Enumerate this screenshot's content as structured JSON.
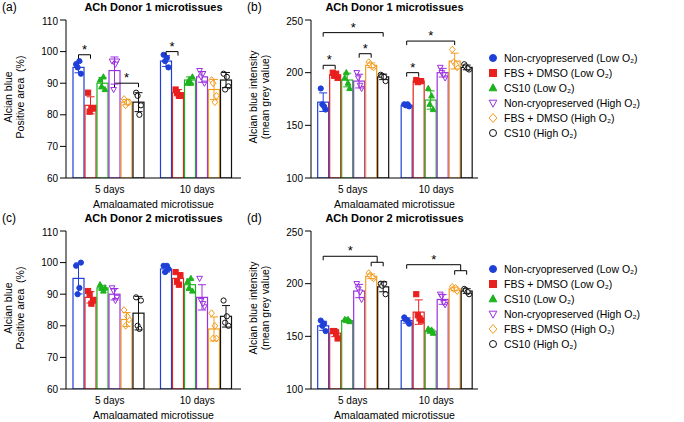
{
  "chart_data": [
    {
      "type": "bar",
      "panel_label": "(a)",
      "title": "ACh Donor 1 microtissues",
      "xlabel": "Amalgamated microtissue",
      "ylabel": [
        "Alcian blue",
        "Positive area  (%)"
      ],
      "categories": [
        "5 days",
        "10 days"
      ],
      "ylim": [
        60,
        110
      ],
      "yticks": [
        60,
        70,
        80,
        90,
        100,
        110
      ],
      "legend": "none",
      "series": [
        {
          "name": "Non-cryopreserved (Low O₂)",
          "color": "#1f40d8",
          "marker": "circle",
          "values": [
            95,
            97
          ],
          "errors": [
            1.7,
            1.7
          ],
          "points": [
            [
              96,
              93,
              95,
              97
            ],
            [
              99,
              95,
              97,
              98
            ]
          ]
        },
        {
          "name": "FBS + DMSO (Low O₂)",
          "color": "#e8201e",
          "marker": "square",
          "values": [
            83,
            87
          ],
          "errors": [
            2.7,
            1.0
          ],
          "points": [
            [
              87,
              82,
              81,
              82
            ],
            [
              88,
              86,
              87,
              86
            ]
          ]
        },
        {
          "name": "CS10 (Low O₂)",
          "color": "#1db31d",
          "marker": "triangle",
          "values": [
            90,
            91
          ],
          "errors": [
            1.8,
            1.0
          ],
          "points": [
            [
              91,
              88,
              89,
              92
            ],
            [
              90,
              92,
              91,
              90
            ]
          ]
        },
        {
          "name": "Non-cryopreserved (High O₂)",
          "color": "#9b30e0",
          "marker": "triangle_down_open",
          "values": [
            94,
            92
          ],
          "errors": [
            4.3,
            1.7
          ],
          "points": [
            [
              97,
              97,
              88,
              96
            ],
            [
              94,
              90,
              92,
              93
            ]
          ]
        },
        {
          "name": "FBS + DMSO (High O₂)",
          "color": "#f39c1e",
          "marker": "diamond_open",
          "values": [
            84,
            88
          ],
          "errors": [
            0.8,
            3.2
          ],
          "points": [
            [
              85,
              84,
              83,
              84
            ],
            [
              91,
              86,
              90,
              84
            ]
          ]
        },
        {
          "name": "CS10 (High O₂)",
          "color": "#111111",
          "marker": "circle_open",
          "values": [
            84,
            91
          ],
          "errors": [
            3.0,
            2.4
          ],
          "points": [
            [
              87,
              83,
              86,
              80
            ],
            [
              93,
              89,
              88,
              92
            ]
          ]
        }
      ],
      "annotations": [
        {
          "text": "*",
          "category": "5 days",
          "from": "Non-cryopreserved (Low O₂)",
          "to": "FBS + DMSO (Low O₂)",
          "y": 99
        },
        {
          "text": "*",
          "category": "5 days",
          "from": "Non-cryopreserved (High O₂)",
          "to": "CS10 (High O₂)",
          "y": 90
        },
        {
          "text": "*",
          "category": "10 days",
          "from": "Non-cryopreserved (Low O₂)",
          "to": "FBS + DMSO (Low O₂)",
          "y": 100
        }
      ]
    },
    {
      "type": "bar",
      "panel_label": "(b)",
      "title": "ACh Donor 1 microtissues",
      "xlabel": "Amalgamated microtissue",
      "ylabel": [
        "Alcian blue intensity",
        "(mean grey value)"
      ],
      "categories": [
        "5 days",
        "10 days"
      ],
      "ylim": [
        100,
        250
      ],
      "yticks": [
        100,
        150,
        200,
        250
      ],
      "legend": "right",
      "series": [
        {
          "name": "Non-cryopreserved (Low O₂)",
          "color": "#1f40d8",
          "marker": "circle",
          "values": [
            172,
            169
          ],
          "errors": [
            8.8,
            1.0
          ],
          "points": [
            [
              185,
              165,
              170,
              168
            ],
            [
              170,
              168,
              169,
              170
            ]
          ]
        },
        {
          "name": "FBS + DMSO (Low O₂)",
          "color": "#e8201e",
          "marker": "square",
          "values": [
            198,
            192
          ],
          "errors": [
            2.2,
            0.8
          ],
          "points": [
            [
              200,
              195,
              197,
              199
            ],
            [
              193,
              192,
              191,
              192
            ]
          ]
        },
        {
          "name": "CS10 (Low O₂)",
          "color": "#1db31d",
          "marker": "triangle",
          "values": [
            193,
            174
          ],
          "errors": [
            6.5,
            8.7
          ],
          "points": [
            [
              195,
              185,
              200,
              190
            ],
            [
              185,
              165,
              170,
              178
            ]
          ]
        },
        {
          "name": "Non-cryopreserved (High O₂)",
          "color": "#9b30e0",
          "marker": "triangle_down_open",
          "values": [
            192,
            200
          ],
          "errors": [
            6.5,
            4.1
          ],
          "points": [
            [
              200,
              185,
              195,
              188
            ],
            [
              205,
              195,
              200,
              198
            ]
          ]
        },
        {
          "name": "FBS + DMSO (High O₂)",
          "color": "#f39c1e",
          "marker": "diamond_open",
          "values": [
            207,
            211
          ],
          "errors": [
            2.2,
            7.5
          ],
          "points": [
            [
              210,
              205,
              208,
              206
            ],
            [
              222,
              205,
              210,
              208
            ]
          ]
        },
        {
          "name": "CS10 (High O₂)",
          "color": "#111111",
          "marker": "circle_open",
          "values": [
            196,
            205
          ],
          "errors": [
            2.6,
            2.2
          ],
          "points": [
            [
              198,
              192,
              197,
              196
            ],
            [
              208,
              203,
              206,
              204
            ]
          ]
        }
      ],
      "annotations": [
        {
          "text": "*",
          "category": "5 days",
          "from": "Non-cryopreserved (Low O₂)",
          "to": "CS10 (High O₂)",
          "y": 238
        },
        {
          "text": "*",
          "category": "5 days",
          "from": "Non-cryopreserved (Low O₂)",
          "to": "FBS + DMSO (Low O₂)",
          "y": 207
        },
        {
          "text": "*",
          "category": "5 days",
          "from": "Non-cryopreserved (High O₂)",
          "to": "FBS + DMSO (High O₂)",
          "y": 218
        },
        {
          "text": "*",
          "category": "10 days",
          "from": "Non-cryopreserved (Low O₂)",
          "to": "FBS + DMSO (High O₂)",
          "y": 230
        },
        {
          "text": "*",
          "category": "10 days",
          "from": "Non-cryopreserved (Low O₂)",
          "to": "FBS + DMSO (Low O₂)",
          "y": 200
        }
      ]
    },
    {
      "type": "bar",
      "panel_label": "(c)",
      "title": "ACh Donor 2 microtissues",
      "xlabel": "Amalgamated microtissue",
      "ylabel": [
        "Alcian blue",
        "Positive area  (%)"
      ],
      "categories": [
        "5 days",
        "10 days"
      ],
      "ylim": [
        60,
        110
      ],
      "yticks": [
        60,
        70,
        80,
        90,
        100,
        110
      ],
      "legend": "none",
      "series": [
        {
          "name": "Non-cryopreserved (Low O₂)",
          "color": "#1f40d8",
          "marker": "circle",
          "values": [
            95,
            98
          ],
          "errors": [
            4.9,
            1.0
          ],
          "points": [
            [
              99,
              100,
              90,
              92
            ],
            [
              99,
              98,
              97,
              99
            ]
          ]
        },
        {
          "name": "FBS + DMSO (Low O₂)",
          "color": "#e8201e",
          "marker": "square",
          "values": [
            89,
            95
          ],
          "errors": [
            1.8,
            1.8
          ],
          "points": [
            [
              91,
              88,
              90,
              87
            ],
            [
              97,
              96,
              94,
              93
            ]
          ]
        },
        {
          "name": "CS10 (Low O₂)",
          "color": "#1db31d",
          "marker": "triangle",
          "values": [
            92,
            93
          ],
          "errors": [
            0.8,
            1.8
          ],
          "points": [
            [
              93,
              92,
              92,
              91
            ],
            [
              94,
              91,
              92,
              95
            ]
          ]
        },
        {
          "name": "Non-cryopreserved (High O₂)",
          "color": "#9b30e0",
          "marker": "triangle_down_open",
          "values": [
            90,
            89
          ],
          "errors": [
            1.8,
            4.0
          ],
          "points": [
            [
              92,
              89,
              91,
              88
            ],
            [
              95,
              86,
              88,
              87
            ]
          ]
        },
        {
          "name": "FBS + DMSO (High O₂)",
          "color": "#f39c1e",
          "marker": "diamond_open",
          "values": [
            82,
            79
          ],
          "errors": [
            2.2,
            3.8
          ],
          "points": [
            [
              85,
              82,
              80,
              83
            ],
            [
              84,
              76,
              76,
              80
            ]
          ]
        },
        {
          "name": "CS10 (High O₂)",
          "color": "#111111",
          "marker": "circle_open",
          "values": [
            84,
            83
          ],
          "errors": [
            5.3,
            3.4
          ],
          "points": [
            [
              89,
              88,
              80,
              79
            ],
            [
              88,
              80,
              81,
              83
            ]
          ]
        }
      ],
      "annotations": []
    },
    {
      "type": "bar",
      "panel_label": "(d)",
      "title": "ACh Donor 2 microtissues",
      "xlabel": "Amalgamated microtissue",
      "ylabel": [
        "Alcian blue intensity",
        "(mean grey value)"
      ],
      "categories": [
        "5 days",
        "10 days"
      ],
      "ylim": [
        100,
        250
      ],
      "yticks": [
        100,
        150,
        200,
        250
      ],
      "legend": "right",
      "series": [
        {
          "name": "Non-cryopreserved (Low O₂)",
          "color": "#1f40d8",
          "marker": "circle",
          "values": [
            160,
            165
          ],
          "errors": [
            4.3,
            2.5
          ],
          "points": [
            [
              165,
              155,
              160,
              162
            ],
            [
              168,
              162,
              166,
              165
            ]
          ]
        },
        {
          "name": "FBS + DMSO (Low O₂)",
          "color": "#e8201e",
          "marker": "square",
          "values": [
            153,
            173
          ],
          "errors": [
            3.3,
            11.6
          ],
          "points": [
            [
              155,
              148,
              155,
              153
            ],
            [
              190,
              165,
              170,
              167
            ]
          ]
        },
        {
          "name": "CS10 (Low O₂)",
          "color": "#1db31d",
          "marker": "triangle",
          "values": [
            165,
            155
          ],
          "errors": [
            1.0,
            1.7
          ],
          "points": [
            [
              166,
              164,
              165,
              166
            ],
            [
              157,
              153,
              155,
              156
            ]
          ]
        },
        {
          "name": "Non-cryopreserved (High O₂)",
          "color": "#9b30e0",
          "marker": "triangle_down_open",
          "values": [
            193,
            185
          ],
          "errors": [
            6.3,
            4.6
          ],
          "points": [
            [
              200,
              185,
              195,
              192
            ],
            [
              190,
              180,
              188,
              182
            ]
          ]
        },
        {
          "name": "FBS + DMSO (High O₂)",
          "color": "#f39c1e",
          "marker": "diamond_open",
          "values": [
            207,
            195
          ],
          "errors": [
            2.2,
            1.7
          ],
          "points": [
            [
              210,
              205,
              208,
              206
            ],
            [
              197,
              193,
              195,
              196
            ]
          ]
        },
        {
          "name": "CS10 (High O₂)",
          "color": "#111111",
          "marker": "circle_open",
          "values": [
            197,
            193
          ],
          "errors": [
            4.7,
            2.2
          ],
          "points": [
            [
              200,
              190,
              198,
              200
            ],
            [
              195,
              190,
              194,
              192
            ]
          ]
        }
      ],
      "annotations": [
        {
          "text": "*",
          "category": "5 days",
          "from": "Non-cryopreserved (Low O₂)",
          "to": [
            "FBS + DMSO (High O₂)",
            "CS10 (High O₂)"
          ],
          "y": 226
        },
        {
          "text": "*",
          "category": "10 days",
          "from": "Non-cryopreserved (Low O₂)",
          "to": [
            "FBS + DMSO (High O₂)",
            "CS10 (High O₂)"
          ],
          "y": 218
        }
      ]
    }
  ]
}
